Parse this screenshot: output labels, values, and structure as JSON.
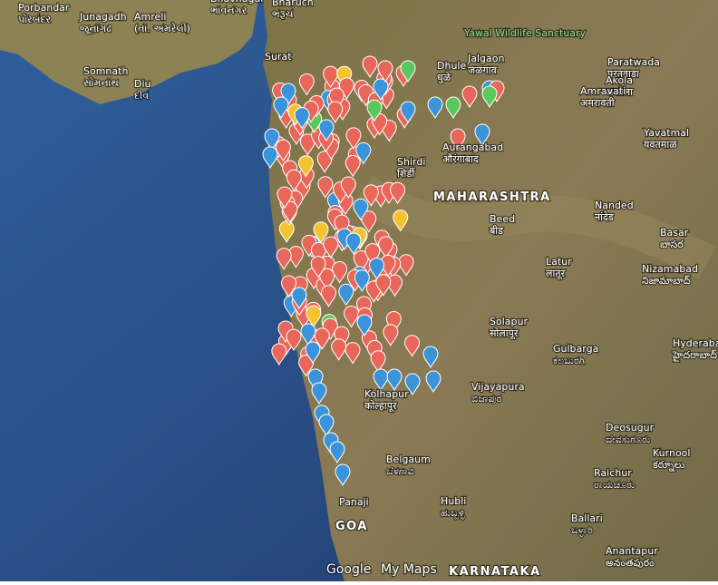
{
  "places": [
    {
      "name": "Porbandar",
      "local": "પોરબંદર"
    },
    {
      "name": "Junagadh",
      "local": "જૂનાગઢ"
    },
    {
      "name": "Amreli",
      "local": "(તા. અમરેલી)"
    },
    {
      "name": "Bhavnagar",
      "local": "ભાવનગર"
    },
    {
      "name": "Bharuch",
      "local": "ભરૂચ"
    },
    {
      "name": "Surat",
      "local": ""
    },
    {
      "name": "Somnath",
      "local": "સોમનાથ"
    },
    {
      "name": "Diu",
      "local": "દીવ"
    },
    {
      "name": "Yawal Wildlife Sanctuary",
      "local": ""
    },
    {
      "name": "Jalgaon",
      "local": "जळगाव"
    },
    {
      "name": "Dhule",
      "local": "धुळे"
    },
    {
      "name": "Paratwada",
      "local": "परतवाडा"
    },
    {
      "name": "Akola",
      "local": "अकोला"
    },
    {
      "name": "Amravati",
      "local": "अमरावती"
    },
    {
      "name": "Yavatmal",
      "local": "यवतमाळ"
    },
    {
      "name": "Aurangabad",
      "local": "औरंगाबाद"
    },
    {
      "name": "Shirdi",
      "local": "शिर्डी"
    },
    {
      "name": "Nanded",
      "local": "नांदेड"
    },
    {
      "name": "Beed",
      "local": "बीड"
    },
    {
      "name": "Basar",
      "local": "బాసర"
    },
    {
      "name": "Latur",
      "local": "लातूर"
    },
    {
      "name": "Nizamabad",
      "local": "నిజామాబాద్"
    },
    {
      "name": "Solapur",
      "local": "सोलापूर"
    },
    {
      "name": "Gulbarga",
      "local": "ಕಲಬುರಗಿ"
    },
    {
      "name": "Hyderabad",
      "local": "హైదరాబాద్"
    },
    {
      "name": "Vijayapura",
      "local": "ಬಿಜಾಪುರ"
    },
    {
      "name": "Kolhapur",
      "local": "कोल्हापूर"
    },
    {
      "name": "Deosugur",
      "local": "ದೇವಸುಗೂರು"
    },
    {
      "name": "Raichur",
      "local": "ರಾಯಚೂರು"
    },
    {
      "name": "Kurnool",
      "local": "కర్నూలు"
    },
    {
      "name": "Belgaum",
      "local": "ಬೆಳಗಾವಿ"
    },
    {
      "name": "Hubli",
      "local": "ಹುಬ್ಬಳ್ಳಿ"
    },
    {
      "name": "Ballari",
      "local": "ಬಳ್ಳಾರಿ"
    },
    {
      "name": "Panaji",
      "local": ""
    },
    {
      "name": "Anantapur",
      "local": "అనంతపురం"
    }
  ],
  "regions": [
    "MAHARASHTRA",
    "GOA",
    "KARNATAKA"
  ],
  "branding": {
    "google": "Google",
    "product": "My Maps"
  }
}
